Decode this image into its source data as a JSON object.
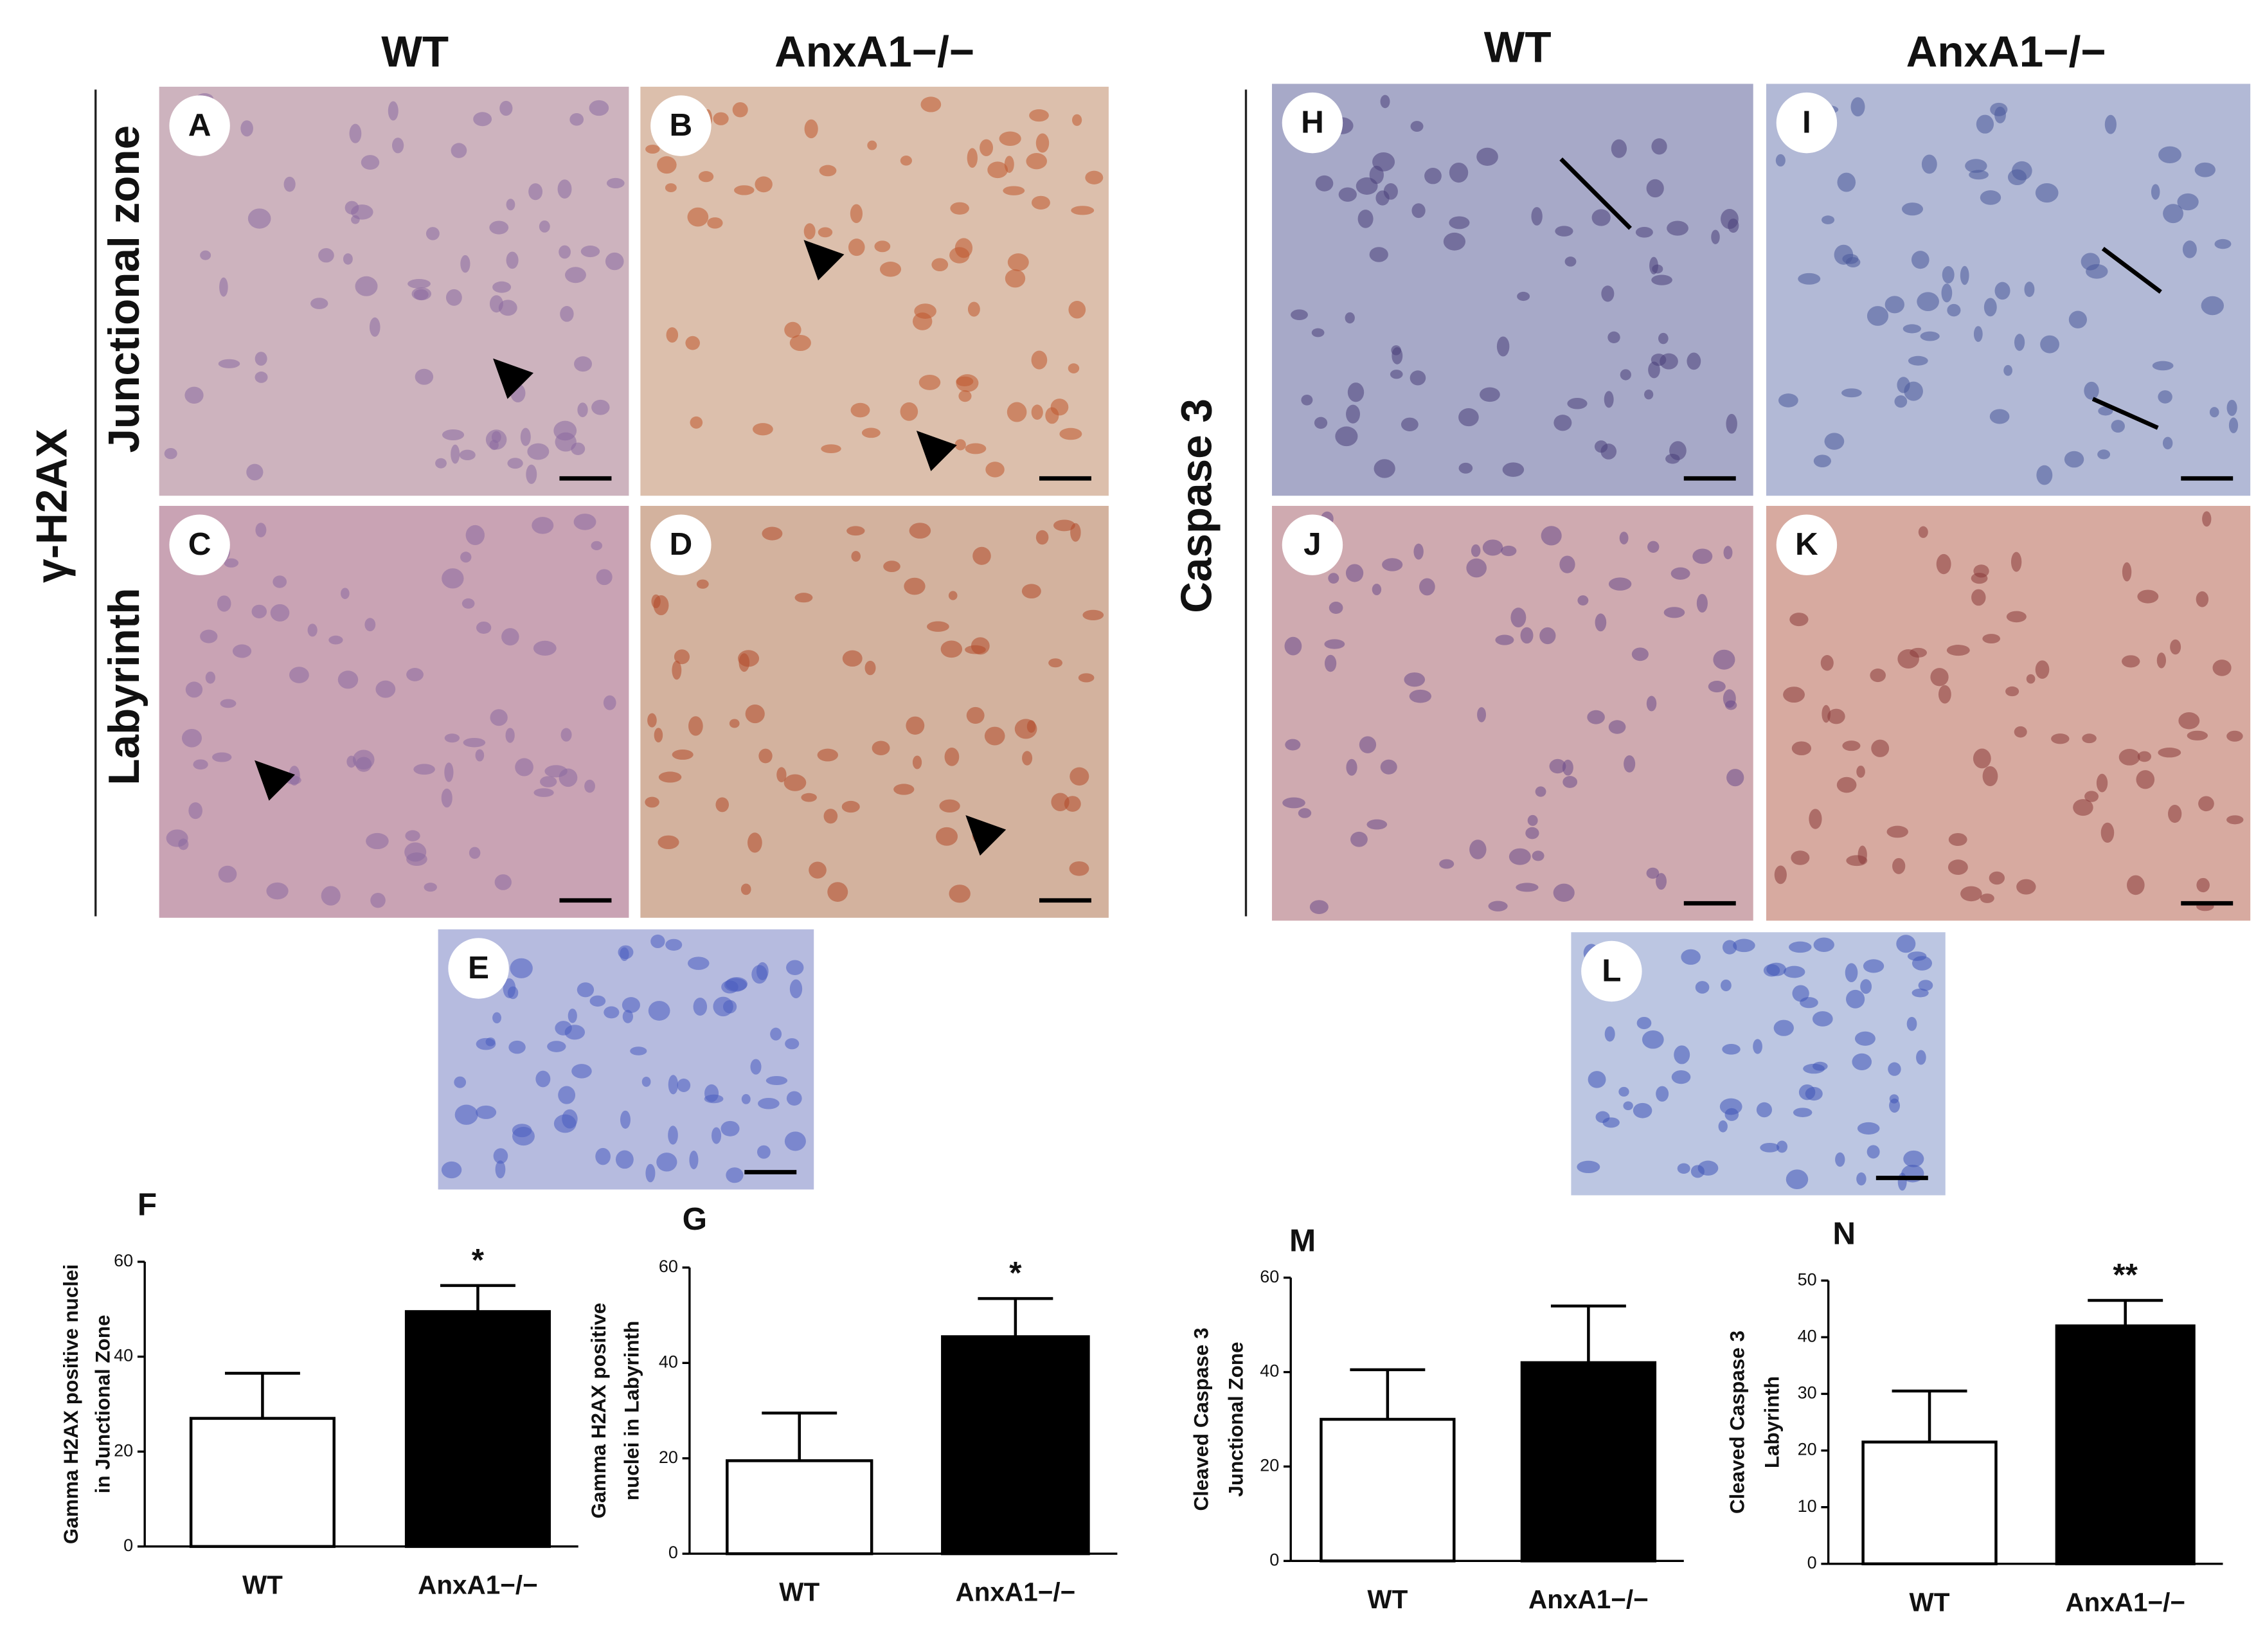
{
  "figure": {
    "left": {
      "stain": "γ-H2AX",
      "columns": [
        "WT",
        "AnxA1−/−"
      ],
      "rows": [
        "Junctional zone",
        "Labyrinth"
      ]
    },
    "right": {
      "stain": "Caspase 3",
      "columns": [
        "WT",
        "AnxA1−/−"
      ]
    },
    "panels": [
      "A",
      "B",
      "C",
      "D",
      "E",
      "H",
      "I",
      "J",
      "K",
      "L"
    ]
  },
  "chart_data": [
    {
      "type": "bar",
      "title": "F",
      "y_label": [
        "Gamma H2AX positive nuclei",
        "in Junctional Zone"
      ],
      "categories": [
        "WT",
        "AnxA1−/−"
      ],
      "values": [
        27,
        49.5
      ],
      "errors": [
        9.5,
        5.5
      ],
      "colors": [
        "#ffffff",
        "#000000"
      ],
      "ylim": [
        0,
        60
      ],
      "yticks": [
        0,
        20,
        40,
        60
      ],
      "annotation": "*"
    },
    {
      "type": "bar",
      "title": "G",
      "y_label": [
        "Gamma H2AX positive",
        "nuclei in Labyrinth"
      ],
      "categories": [
        "WT",
        "AnxA1−/−"
      ],
      "values": [
        19.5,
        45.5
      ],
      "errors": [
        10,
        8
      ],
      "colors": [
        "#ffffff",
        "#000000"
      ],
      "ylim": [
        0,
        60
      ],
      "yticks": [
        0,
        20,
        40,
        60
      ],
      "annotation": "*"
    },
    {
      "type": "bar",
      "title": "M",
      "y_label": [
        "Cleaved Caspase 3",
        "Junctional Zone"
      ],
      "categories": [
        "WT",
        "AnxA1−/−"
      ],
      "values": [
        30,
        42
      ],
      "errors": [
        10.5,
        12
      ],
      "colors": [
        "#ffffff",
        "#000000"
      ],
      "ylim": [
        0,
        60
      ],
      "yticks": [
        0,
        20,
        40,
        60
      ]
    },
    {
      "type": "bar",
      "title": "N",
      "y_label": [
        "Cleaved Caspase 3",
        "Labyrinth"
      ],
      "categories": [
        "WT",
        "AnxA1−/−"
      ],
      "values": [
        21.5,
        42
      ],
      "errors": [
        9,
        4.5
      ],
      "colors": [
        "#ffffff",
        "#000000"
      ],
      "ylim": [
        0,
        50
      ],
      "yticks": [
        0,
        10,
        20,
        30,
        40,
        50
      ],
      "annotation": "**"
    }
  ]
}
